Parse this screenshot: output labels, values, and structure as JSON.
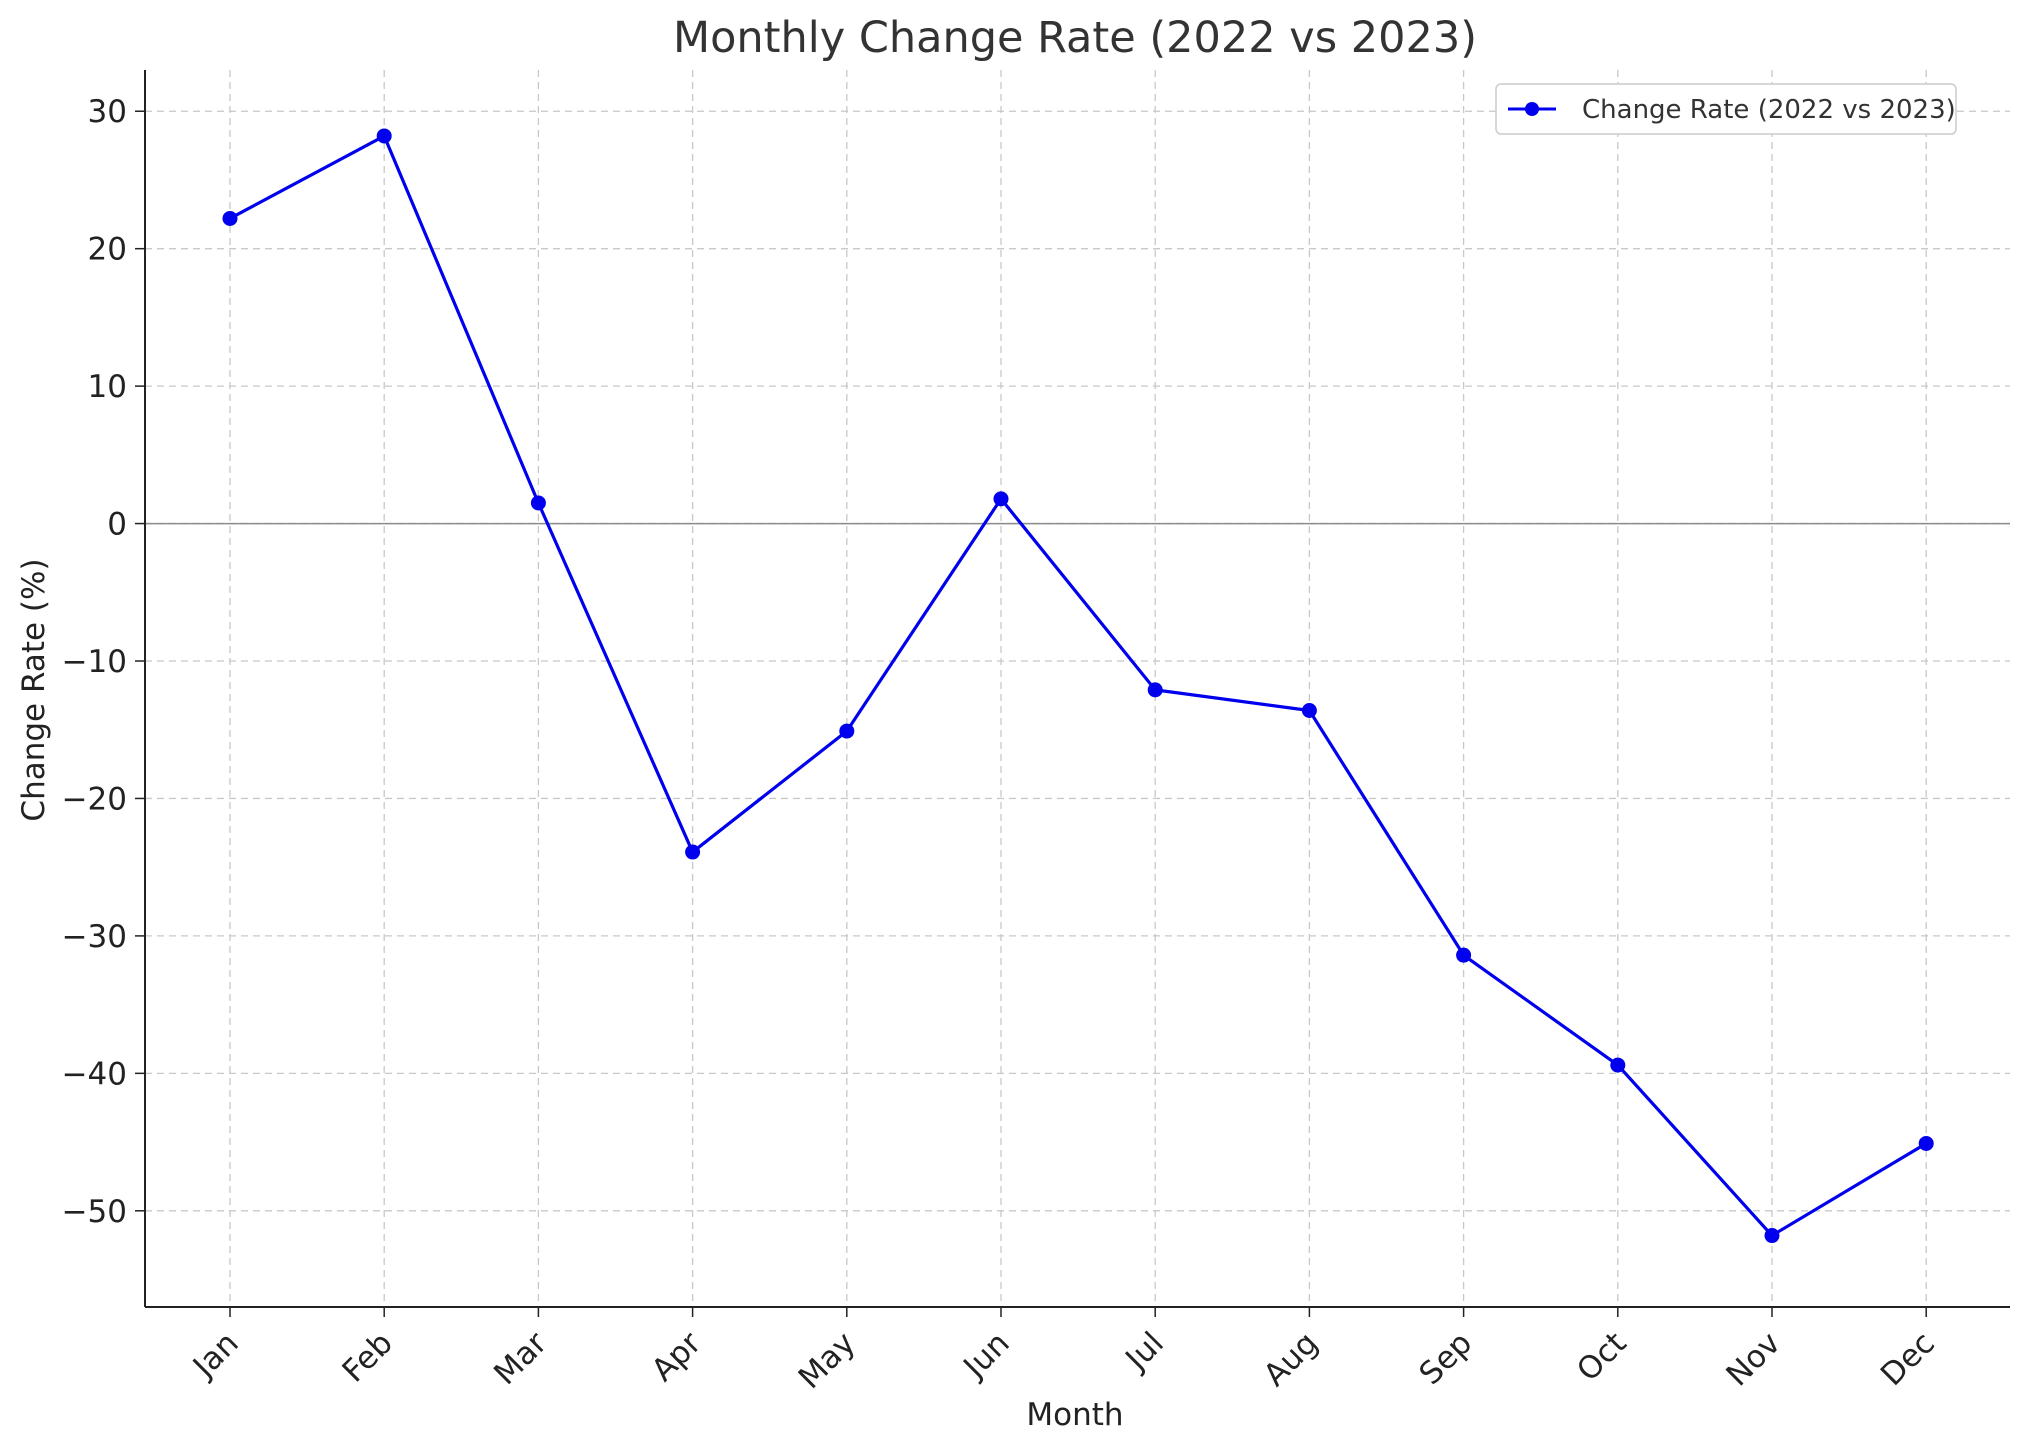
{
  "chart_data": {
    "type": "line",
    "title": "Monthly Change Rate (2022 vs 2023)",
    "xlabel": "Month",
    "ylabel": "Change Rate (%)",
    "categories": [
      "Jan",
      "Feb",
      "Mar",
      "Apr",
      "May",
      "Jun",
      "Jul",
      "Aug",
      "Sep",
      "Oct",
      "Nov",
      "Dec"
    ],
    "series": [
      {
        "name": "Change Rate (2022 vs 2023)",
        "values": [
          22.2,
          28.2,
          1.5,
          -23.9,
          -15.1,
          1.8,
          -12.1,
          -13.6,
          -31.4,
          -39.4,
          -51.8,
          -45.1
        ],
        "color": "#0000ee",
        "marker": "circle"
      }
    ],
    "ylim": [
      -57,
      33
    ],
    "yticks": [
      30,
      20,
      10,
      0,
      -10,
      -20,
      -30,
      -40,
      -50
    ],
    "ytick_labels": [
      "30",
      "20",
      "10",
      "0",
      "−10",
      "−20",
      "−30",
      "−40",
      "−50"
    ],
    "grid": true,
    "zero_line": true,
    "legend_position": "top-right",
    "xtick_rotation": 45
  }
}
